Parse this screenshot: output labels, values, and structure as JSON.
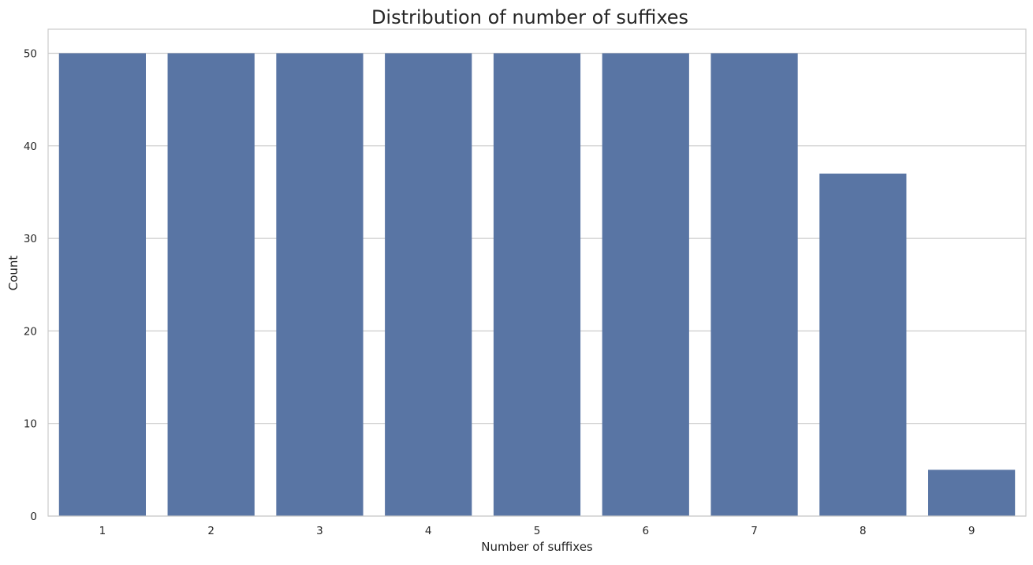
{
  "chart_data": {
    "type": "bar",
    "title": "Distribution of number of suffixes",
    "xlabel": "Number of suffixes",
    "ylabel": "Count",
    "categories": [
      "1",
      "2",
      "3",
      "4",
      "5",
      "6",
      "7",
      "8",
      "9"
    ],
    "values": [
      50,
      50,
      50,
      50,
      50,
      50,
      50,
      37,
      5
    ],
    "ylim": [
      0,
      52.6
    ],
    "yticks": [
      0,
      10,
      20,
      30,
      40,
      50
    ],
    "grid": "horizontal",
    "legend": "none",
    "colors": {
      "bar": "#5975a4",
      "grid": "#cccccc",
      "spine": "#cccccc",
      "text": "#262626"
    }
  }
}
